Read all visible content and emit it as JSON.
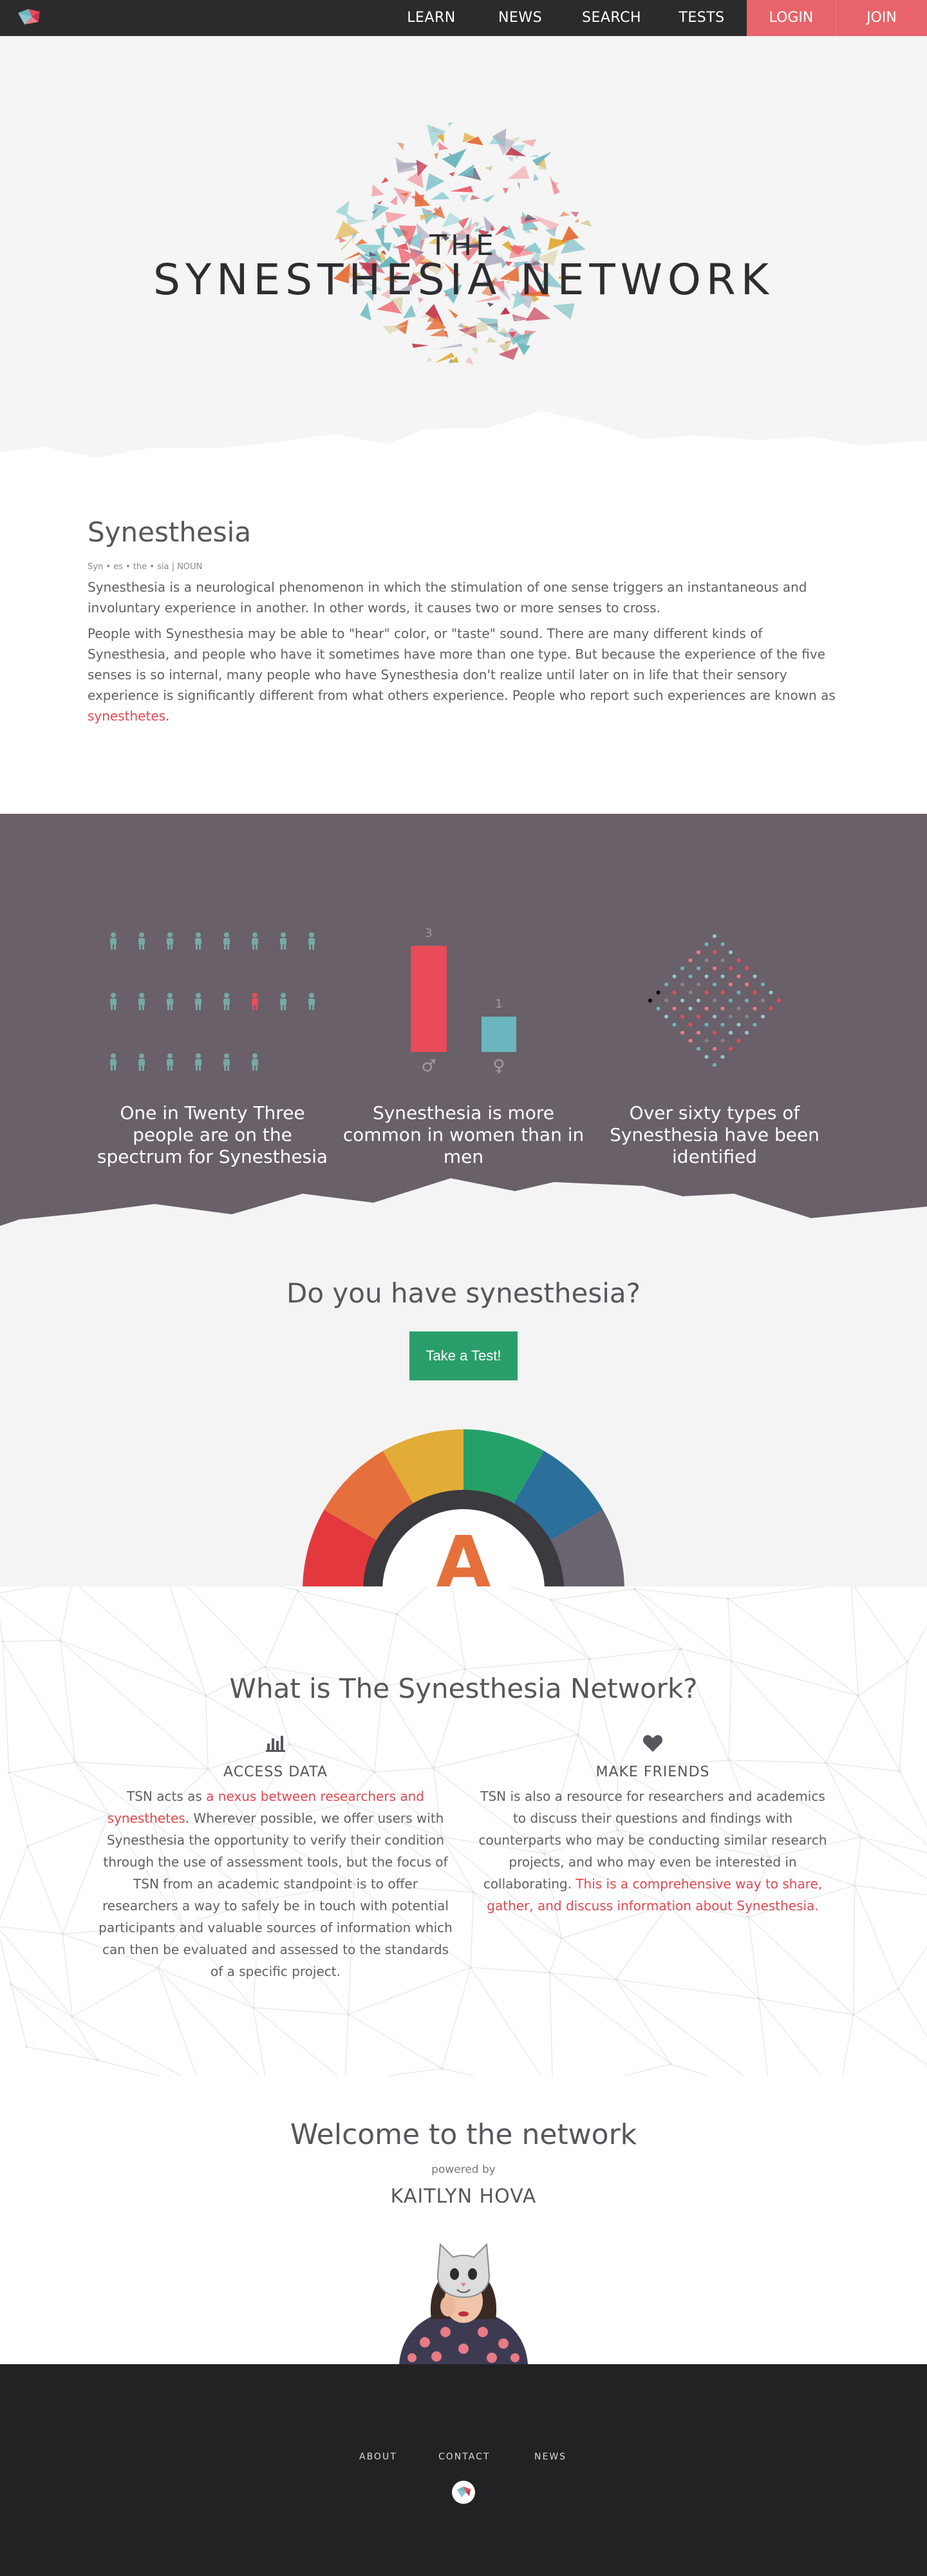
{
  "nav": {
    "links": [
      "LEARN",
      "NEWS",
      "SEARCH",
      "TESTS"
    ],
    "login_label": "LOGIN",
    "join_label": "JOIN"
  },
  "hero": {
    "the": "THE",
    "title": "SYNESTHESIA NETWORK"
  },
  "about": {
    "heading": "Synesthesia",
    "pronunciation": "Syn • es • the • sia | NOUN",
    "p1": "Synesthesia is a neurological phenomenon in which the stimulation of one sense triggers an instantaneous and involuntary experience in another. In other words, it causes two or more senses to cross.",
    "p2": "People with Synesthesia may be able to \"hear\" color, or \"taste\" sound. There are many different kinds of Synesthesia, and people who have it sometimes have more than one type. But because the experience of the five senses is so internal, many people who have Synesthesia don't realize until later on in life that their sensory experience is significantly different from what others experience. People who report such experiences are known as ",
    "p2_link": "synesthetes",
    "p2_end": "."
  },
  "stats": {
    "captions": [
      "One in Twenty Three people are on the spectrum for Synesthesia",
      "Synesthesia is more common in women than in men",
      "Over sixty types of Synesthesia have been identified"
    ],
    "bar_labels": [
      "3",
      "1"
    ],
    "bar_values": [
      3,
      1
    ],
    "male_symbol": "♂",
    "female_symbol": "♀",
    "colors": {
      "bg": "#696069",
      "bar_male": "#ea4b58",
      "bar_female": "#6bb6be",
      "person": "#77a8a4",
      "person_highlight": "#ea4b58"
    }
  },
  "test": {
    "heading": "Do you have synesthesia?",
    "button_label": "Take a Test!",
    "dial_letter": "A",
    "dial_colors": [
      "#e3383e",
      "#e5703b",
      "#e2ac36",
      "#24a168",
      "#2b6f9b",
      "#6a6370"
    ]
  },
  "what": {
    "heading": "What is The Synesthesia Network?",
    "access_title": "ACCESS DATA",
    "access_pre": "TSN acts as ",
    "access_link": "a nexus between researchers and synesthetes",
    "access_post": ". Wherever possible, we offer users with Synesthesia the opportunity to verify their condition through the use of assessment tools, but the focus of TSN from an academic standpoint is to offer researchers a way to safely be in touch with potential participants and valuable sources of information which can then be evaluated and assessed to the standards of a specific project.",
    "friends_title": "MAKE FRIENDS",
    "friends_pre": "TSN is also a resource for researchers and academics to discuss their questions and findings with counterparts who may be conducting similar research projects, and who may even be interested in collaborating. ",
    "friends_link": "This is a comprehensive way to share, gather, and discuss information about Synesthesia."
  },
  "welcome": {
    "heading": "Welcome to the network",
    "powered": "powered by",
    "author": "KAITLYN HOVA"
  },
  "footer": {
    "links": [
      "ABOUT",
      "CONTACT",
      "NEWS"
    ]
  }
}
